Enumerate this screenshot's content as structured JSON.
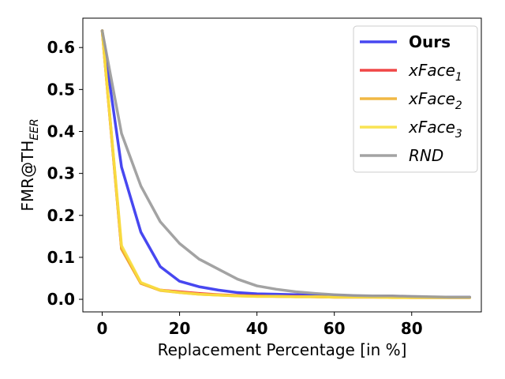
{
  "chart_data": {
    "type": "line",
    "xlabel": "Replacement Percentage [in %]",
    "ylabel": "FMR@TH",
    "ylabel_sub": "EER",
    "xlim": [
      -5,
      98
    ],
    "ylim": [
      -0.03,
      0.67
    ],
    "xticks": [
      0,
      20,
      40,
      60,
      80
    ],
    "yticks": [
      0.0,
      0.1,
      0.2,
      0.3,
      0.4,
      0.5,
      0.6
    ],
    "xtick_labels": [
      "0",
      "20",
      "40",
      "60",
      "80"
    ],
    "ytick_labels": [
      "0.0",
      "0.1",
      "0.2",
      "0.3",
      "0.4",
      "0.5",
      "0.6"
    ],
    "grid": false,
    "legend_position": "top-right",
    "x": [
      0,
      5,
      10,
      15,
      20,
      25,
      30,
      35,
      40,
      45,
      50,
      55,
      60,
      65,
      70,
      75,
      80,
      85,
      90,
      95
    ],
    "series": [
      {
        "name": "Ours",
        "label_main": "Ours",
        "label_sub": "",
        "italic": false,
        "bold": true,
        "color": "#3333ee",
        "values": [
          0.64,
          0.315,
          0.16,
          0.078,
          0.043,
          0.03,
          0.022,
          0.016,
          0.013,
          0.012,
          0.011,
          0.01,
          0.009,
          0.008,
          0.007,
          0.007,
          0.006,
          0.005,
          0.005,
          0.005
        ]
      },
      {
        "name": "xFace1",
        "label_main": "xFace",
        "label_sub": "1",
        "italic": true,
        "bold": false,
        "color": "#ee3333",
        "values": [
          0.64,
          0.12,
          0.038,
          0.022,
          0.018,
          0.014,
          0.011,
          0.009,
          0.008,
          0.007,
          0.007,
          0.006,
          0.005,
          0.005,
          0.005,
          0.005,
          0.004,
          0.004,
          0.004,
          0.004
        ]
      },
      {
        "name": "xFace2",
        "label_main": "xFace",
        "label_sub": "2",
        "italic": true,
        "bold": false,
        "color": "#f0b030",
        "values": [
          0.64,
          0.12,
          0.038,
          0.021,
          0.016,
          0.012,
          0.01,
          0.008,
          0.007,
          0.007,
          0.006,
          0.006,
          0.005,
          0.005,
          0.005,
          0.004,
          0.004,
          0.004,
          0.004,
          0.004
        ]
      },
      {
        "name": "xFace3",
        "label_main": "xFace",
        "label_sub": "3",
        "italic": true,
        "bold": false,
        "color": "#f8e040",
        "values": [
          0.64,
          0.128,
          0.04,
          0.022,
          0.016,
          0.012,
          0.01,
          0.008,
          0.007,
          0.007,
          0.006,
          0.006,
          0.005,
          0.005,
          0.005,
          0.004,
          0.004,
          0.004,
          0.004,
          0.004
        ]
      },
      {
        "name": "RND",
        "label_main": "RND",
        "label_sub": "",
        "italic": true,
        "bold": false,
        "color": "#999999",
        "values": [
          0.64,
          0.395,
          0.27,
          0.185,
          0.133,
          0.096,
          0.072,
          0.048,
          0.032,
          0.024,
          0.018,
          0.014,
          0.011,
          0.009,
          0.008,
          0.008,
          0.007,
          0.006,
          0.005,
          0.005
        ]
      }
    ]
  }
}
